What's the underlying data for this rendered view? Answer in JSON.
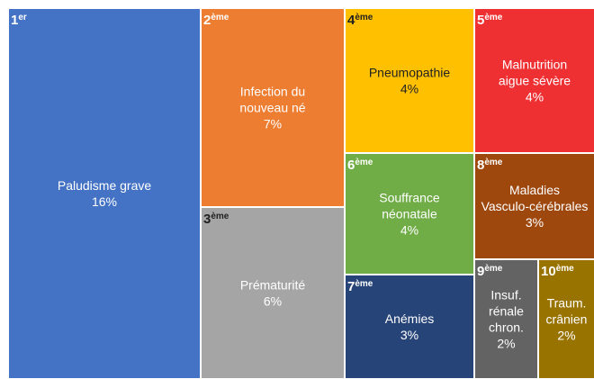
{
  "chart_data": {
    "type": "treemap",
    "ranks": [
      {
        "n": "1",
        "sup": "er"
      },
      {
        "n": "2",
        "sup": "ème"
      },
      {
        "n": "3",
        "sup": "ème"
      },
      {
        "n": "4",
        "sup": "ème"
      },
      {
        "n": "5",
        "sup": "ème"
      },
      {
        "n": "6",
        "sup": "ème"
      },
      {
        "n": "7",
        "sup": "ème"
      },
      {
        "n": "8",
        "sup": "ème"
      },
      {
        "n": "9",
        "sup": "ème"
      },
      {
        "n": "10",
        "sup": "ème"
      }
    ],
    "categories": [
      [
        "Paludisme grave"
      ],
      [
        "Infection du",
        "nouveau né"
      ],
      [
        "Prématurité"
      ],
      [
        "Pneumopathie"
      ],
      [
        "Malnutrition",
        "aigue sévère"
      ],
      [
        "Souffrance",
        "néonatale"
      ],
      [
        "Anémies"
      ],
      [
        "Maladies",
        "Vasculo-cérébrales"
      ],
      [
        "Insuf.",
        "rénale",
        "chron."
      ],
      [
        "Traum.",
        "crânien"
      ]
    ],
    "values": [
      16,
      7,
      6,
      4,
      4,
      4,
      3,
      3,
      2,
      2
    ],
    "value_labels": [
      "16%",
      "7%",
      "6%",
      "4%",
      "4%",
      "4%",
      "3%",
      "3%",
      "2%",
      "2%"
    ],
    "colors": [
      "#4472c4",
      "#ed7d31",
      "#a5a5a5",
      "#ffc000",
      "#ee3033",
      "#70ad47",
      "#264478",
      "#9e480e",
      "#636363",
      "#997300"
    ]
  }
}
